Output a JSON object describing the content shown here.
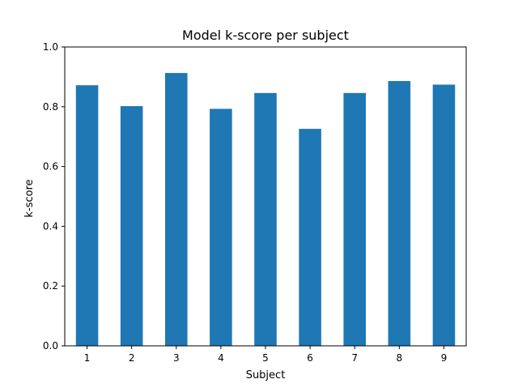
{
  "chart_data": {
    "type": "bar",
    "title": "Model k-score per subject",
    "xlabel": "Subject",
    "ylabel": "k-score",
    "categories": [
      "1",
      "2",
      "3",
      "4",
      "5",
      "6",
      "7",
      "8",
      "9"
    ],
    "values": [
      0.872,
      0.802,
      0.913,
      0.793,
      0.846,
      0.726,
      0.846,
      0.886,
      0.874
    ],
    "ylim": [
      0,
      1.0
    ],
    "yticks": [
      "0.0",
      "0.2",
      "0.4",
      "0.6",
      "0.8",
      "1.0"
    ],
    "bar_color": "#1f77b4",
    "grid": false
  }
}
